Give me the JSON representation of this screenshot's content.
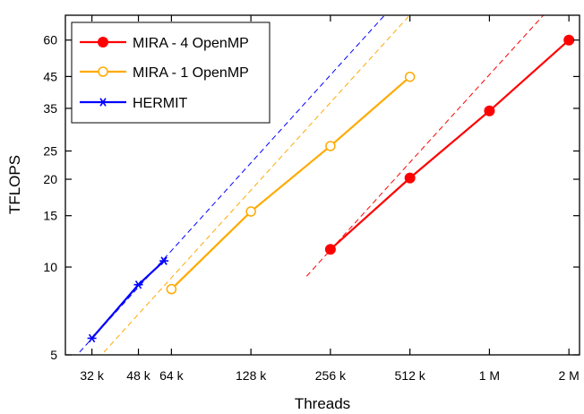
{
  "chart_data": {
    "type": "line",
    "xlabel": "Threads",
    "ylabel": "TFLOPS",
    "x_scale": "log2",
    "y_scale": "log",
    "xlim": [
      26000,
      2300000
    ],
    "ylim": [
      5,
      73
    ],
    "x_ticks": [
      {
        "value": 32768,
        "label": "32 k"
      },
      {
        "value": 49152,
        "label": "48 k"
      },
      {
        "value": 65536,
        "label": "64 k"
      },
      {
        "value": 131072,
        "label": "128 k"
      },
      {
        "value": 262144,
        "label": "256 k"
      },
      {
        "value": 524288,
        "label": "512 k"
      },
      {
        "value": 1048576,
        "label": "1 M"
      },
      {
        "value": 2097152,
        "label": "2 M"
      }
    ],
    "y_ticks": [
      {
        "value": 5,
        "label": "5"
      },
      {
        "value": 10,
        "label": "10"
      },
      {
        "value": 15,
        "label": "15"
      },
      {
        "value": 20,
        "label": "20"
      },
      {
        "value": 25,
        "label": "25"
      },
      {
        "value": 35,
        "label": "35"
      },
      {
        "value": 45,
        "label": "45"
      },
      {
        "value": 60,
        "label": "60"
      }
    ],
    "legend_position": "top-left",
    "grid": false,
    "series": [
      {
        "name": "MIRA - 4 OpenMP",
        "color": "#ff0000",
        "marker": "filled-circle",
        "points": [
          [
            262144,
            11.5
          ],
          [
            524288,
            20.2
          ],
          [
            1048576,
            34.3
          ],
          [
            2097152,
            60.0
          ]
        ]
      },
      {
        "name": "MIRA - 1 OpenMP",
        "color": "#ffaa00",
        "marker": "open-circle",
        "points": [
          [
            65536,
            8.4
          ],
          [
            131072,
            15.5
          ],
          [
            262144,
            26.0
          ],
          [
            524288,
            44.9
          ]
        ]
      },
      {
        "name": "HERMIT",
        "color": "#0000ff",
        "marker": "asterisk",
        "points": [
          [
            32768,
            5.7
          ],
          [
            49152,
            8.7
          ],
          [
            61440,
            10.5
          ]
        ]
      }
    ],
    "reference_lines": [
      {
        "color": "#0000ff",
        "style": "dashed",
        "points": [
          [
            26500,
            4.6
          ],
          [
            760000,
            132
          ]
        ]
      },
      {
        "color": "#ffaa00",
        "style": "dashed",
        "points": [
          [
            32768,
            4.6
          ],
          [
            760000,
            106
          ]
        ]
      },
      {
        "color": "#ff0000",
        "style": "dashed",
        "points": [
          [
            213000,
            9.3
          ],
          [
            2300000,
            100
          ]
        ]
      }
    ]
  }
}
